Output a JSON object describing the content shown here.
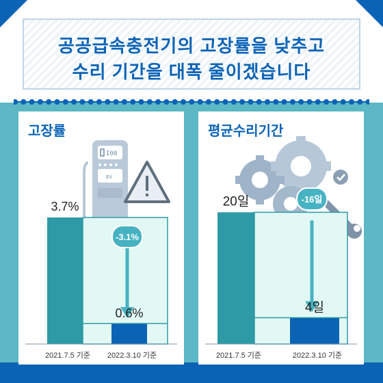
{
  "header": {
    "title_line1": "공공급속충전기의 고장률을 낮추고",
    "title_line2": "수리 기간을 대폭 줄이겠습니다"
  },
  "colors": {
    "brand_blue": "#0b63b6",
    "teal": "#2d9aa5",
    "mint": "#e2f8f4",
    "arrow": "#47b3c2",
    "background_teal": "#5bb8c4"
  },
  "icons": [
    "ev-charger-icon",
    "warning-icon",
    "gears-icon",
    "wrench-icon",
    "check-icon"
  ],
  "chart_data": [
    {
      "type": "bar",
      "title": "고장률",
      "categories": [
        "2021.7.5 기준",
        "2022.3.10 기준"
      ],
      "values": [
        3.7,
        0.6
      ],
      "value_labels": [
        "3.7%",
        "0.6%"
      ],
      "change_label": "-3.1%",
      "ylim": [
        0,
        4.0
      ]
    },
    {
      "type": "bar",
      "title": "평균수리기간",
      "categories": [
        "2021.7.5 기준",
        "2022.3.10 기준"
      ],
      "values": [
        20,
        4
      ],
      "value_labels": [
        "20일",
        "4일"
      ],
      "change_label": "-16일",
      "ylim": [
        0,
        21.6
      ]
    }
  ]
}
